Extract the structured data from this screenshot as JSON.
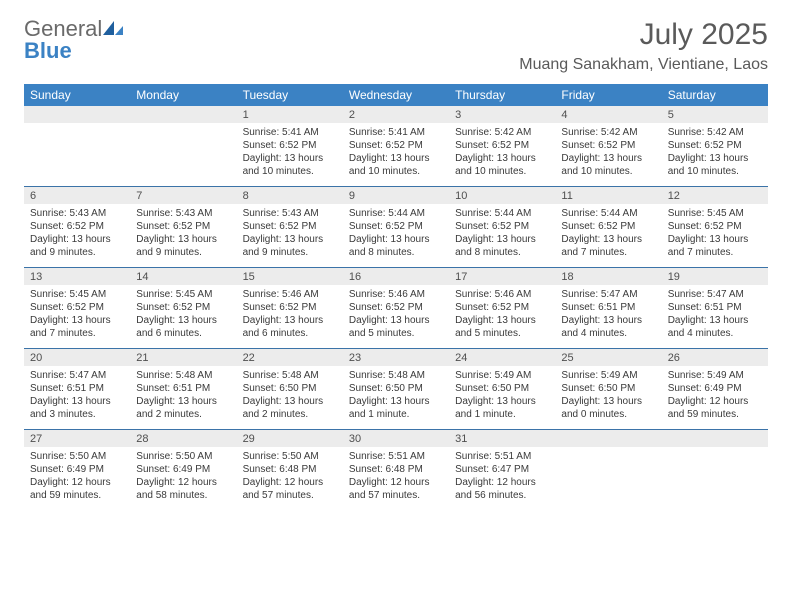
{
  "logo": {
    "text1": "General",
    "text2": "Blue"
  },
  "title": "July 2025",
  "location": "Muang Sanakham, Vientiane, Laos",
  "colors": {
    "header_bg": "#3b82c4",
    "header_text": "#ffffff",
    "daynum_bg": "#ececec",
    "row_border": "#3b73a8",
    "body_text": "#3a3a3a",
    "title_text": "#5a5a5a",
    "logo_gray": "#6a6a6a",
    "logo_blue": "#3b82c4"
  },
  "weekdays": [
    "Sunday",
    "Monday",
    "Tuesday",
    "Wednesday",
    "Thursday",
    "Friday",
    "Saturday"
  ],
  "weeks": [
    [
      null,
      null,
      {
        "n": "1",
        "sr": "Sunrise: 5:41 AM",
        "ss": "Sunset: 6:52 PM",
        "dl": "Daylight: 13 hours and 10 minutes."
      },
      {
        "n": "2",
        "sr": "Sunrise: 5:41 AM",
        "ss": "Sunset: 6:52 PM",
        "dl": "Daylight: 13 hours and 10 minutes."
      },
      {
        "n": "3",
        "sr": "Sunrise: 5:42 AM",
        "ss": "Sunset: 6:52 PM",
        "dl": "Daylight: 13 hours and 10 minutes."
      },
      {
        "n": "4",
        "sr": "Sunrise: 5:42 AM",
        "ss": "Sunset: 6:52 PM",
        "dl": "Daylight: 13 hours and 10 minutes."
      },
      {
        "n": "5",
        "sr": "Sunrise: 5:42 AM",
        "ss": "Sunset: 6:52 PM",
        "dl": "Daylight: 13 hours and 10 minutes."
      }
    ],
    [
      {
        "n": "6",
        "sr": "Sunrise: 5:43 AM",
        "ss": "Sunset: 6:52 PM",
        "dl": "Daylight: 13 hours and 9 minutes."
      },
      {
        "n": "7",
        "sr": "Sunrise: 5:43 AM",
        "ss": "Sunset: 6:52 PM",
        "dl": "Daylight: 13 hours and 9 minutes."
      },
      {
        "n": "8",
        "sr": "Sunrise: 5:43 AM",
        "ss": "Sunset: 6:52 PM",
        "dl": "Daylight: 13 hours and 9 minutes."
      },
      {
        "n": "9",
        "sr": "Sunrise: 5:44 AM",
        "ss": "Sunset: 6:52 PM",
        "dl": "Daylight: 13 hours and 8 minutes."
      },
      {
        "n": "10",
        "sr": "Sunrise: 5:44 AM",
        "ss": "Sunset: 6:52 PM",
        "dl": "Daylight: 13 hours and 8 minutes."
      },
      {
        "n": "11",
        "sr": "Sunrise: 5:44 AM",
        "ss": "Sunset: 6:52 PM",
        "dl": "Daylight: 13 hours and 7 minutes."
      },
      {
        "n": "12",
        "sr": "Sunrise: 5:45 AM",
        "ss": "Sunset: 6:52 PM",
        "dl": "Daylight: 13 hours and 7 minutes."
      }
    ],
    [
      {
        "n": "13",
        "sr": "Sunrise: 5:45 AM",
        "ss": "Sunset: 6:52 PM",
        "dl": "Daylight: 13 hours and 7 minutes."
      },
      {
        "n": "14",
        "sr": "Sunrise: 5:45 AM",
        "ss": "Sunset: 6:52 PM",
        "dl": "Daylight: 13 hours and 6 minutes."
      },
      {
        "n": "15",
        "sr": "Sunrise: 5:46 AM",
        "ss": "Sunset: 6:52 PM",
        "dl": "Daylight: 13 hours and 6 minutes."
      },
      {
        "n": "16",
        "sr": "Sunrise: 5:46 AM",
        "ss": "Sunset: 6:52 PM",
        "dl": "Daylight: 13 hours and 5 minutes."
      },
      {
        "n": "17",
        "sr": "Sunrise: 5:46 AM",
        "ss": "Sunset: 6:52 PM",
        "dl": "Daylight: 13 hours and 5 minutes."
      },
      {
        "n": "18",
        "sr": "Sunrise: 5:47 AM",
        "ss": "Sunset: 6:51 PM",
        "dl": "Daylight: 13 hours and 4 minutes."
      },
      {
        "n": "19",
        "sr": "Sunrise: 5:47 AM",
        "ss": "Sunset: 6:51 PM",
        "dl": "Daylight: 13 hours and 4 minutes."
      }
    ],
    [
      {
        "n": "20",
        "sr": "Sunrise: 5:47 AM",
        "ss": "Sunset: 6:51 PM",
        "dl": "Daylight: 13 hours and 3 minutes."
      },
      {
        "n": "21",
        "sr": "Sunrise: 5:48 AM",
        "ss": "Sunset: 6:51 PM",
        "dl": "Daylight: 13 hours and 2 minutes."
      },
      {
        "n": "22",
        "sr": "Sunrise: 5:48 AM",
        "ss": "Sunset: 6:50 PM",
        "dl": "Daylight: 13 hours and 2 minutes."
      },
      {
        "n": "23",
        "sr": "Sunrise: 5:48 AM",
        "ss": "Sunset: 6:50 PM",
        "dl": "Daylight: 13 hours and 1 minute."
      },
      {
        "n": "24",
        "sr": "Sunrise: 5:49 AM",
        "ss": "Sunset: 6:50 PM",
        "dl": "Daylight: 13 hours and 1 minute."
      },
      {
        "n": "25",
        "sr": "Sunrise: 5:49 AM",
        "ss": "Sunset: 6:50 PM",
        "dl": "Daylight: 13 hours and 0 minutes."
      },
      {
        "n": "26",
        "sr": "Sunrise: 5:49 AM",
        "ss": "Sunset: 6:49 PM",
        "dl": "Daylight: 12 hours and 59 minutes."
      }
    ],
    [
      {
        "n": "27",
        "sr": "Sunrise: 5:50 AM",
        "ss": "Sunset: 6:49 PM",
        "dl": "Daylight: 12 hours and 59 minutes."
      },
      {
        "n": "28",
        "sr": "Sunrise: 5:50 AM",
        "ss": "Sunset: 6:49 PM",
        "dl": "Daylight: 12 hours and 58 minutes."
      },
      {
        "n": "29",
        "sr": "Sunrise: 5:50 AM",
        "ss": "Sunset: 6:48 PM",
        "dl": "Daylight: 12 hours and 57 minutes."
      },
      {
        "n": "30",
        "sr": "Sunrise: 5:51 AM",
        "ss": "Sunset: 6:48 PM",
        "dl": "Daylight: 12 hours and 57 minutes."
      },
      {
        "n": "31",
        "sr": "Sunrise: 5:51 AM",
        "ss": "Sunset: 6:47 PM",
        "dl": "Daylight: 12 hours and 56 minutes."
      },
      null,
      null
    ]
  ]
}
